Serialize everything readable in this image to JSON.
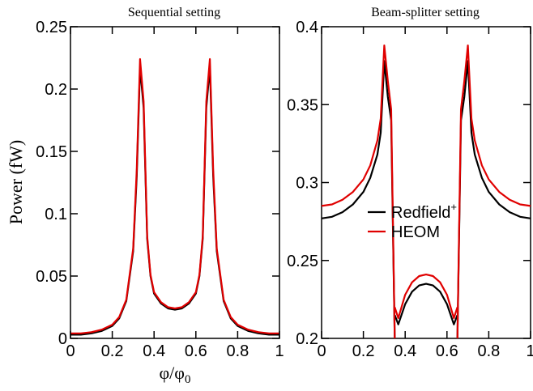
{
  "colors": {
    "redfield": "#000000",
    "heom": "#e00000"
  },
  "chart_data": [
    {
      "type": "line",
      "title": "Sequential setting",
      "xlabel": "φ/φ0",
      "ylabel": "Power (fW)",
      "xlim": [
        0,
        1
      ],
      "ylim": [
        0,
        0.25
      ],
      "xticks": [
        "0",
        "0.2",
        "0.4",
        "0.6",
        "0.8",
        "1"
      ],
      "yticks": [
        "0",
        "0.05",
        "0.1",
        "0.15",
        "0.2",
        "0.25"
      ],
      "grid": false,
      "series": [
        {
          "key": "redfield",
          "x": [
            0,
            0.05,
            0.1,
            0.15,
            0.2,
            0.233,
            0.267,
            0.3,
            0.317,
            0.333,
            0.35,
            0.367,
            0.383,
            0.4,
            0.433,
            0.467,
            0.5,
            0.533,
            0.567,
            0.6,
            0.617,
            0.633,
            0.65,
            0.667,
            0.683,
            0.7,
            0.733,
            0.767,
            0.8,
            0.85,
            0.9,
            0.95,
            1.0
          ],
          "values": [
            0.003,
            0.003,
            0.004,
            0.006,
            0.01,
            0.016,
            0.03,
            0.07,
            0.13,
            0.218,
            0.185,
            0.08,
            0.05,
            0.036,
            0.028,
            0.024,
            0.023,
            0.024,
            0.028,
            0.036,
            0.05,
            0.08,
            0.185,
            0.218,
            0.13,
            0.07,
            0.03,
            0.016,
            0.01,
            0.006,
            0.004,
            0.003,
            0.003
          ]
        },
        {
          "key": "heom",
          "x": [
            0,
            0.05,
            0.1,
            0.15,
            0.2,
            0.233,
            0.267,
            0.3,
            0.317,
            0.333,
            0.35,
            0.367,
            0.383,
            0.4,
            0.433,
            0.467,
            0.5,
            0.533,
            0.567,
            0.6,
            0.617,
            0.633,
            0.65,
            0.667,
            0.683,
            0.7,
            0.733,
            0.767,
            0.8,
            0.85,
            0.9,
            0.95,
            1.0
          ],
          "values": [
            0.004,
            0.004,
            0.005,
            0.007,
            0.011,
            0.017,
            0.031,
            0.072,
            0.135,
            0.224,
            0.19,
            0.082,
            0.051,
            0.037,
            0.029,
            0.025,
            0.024,
            0.025,
            0.029,
            0.037,
            0.051,
            0.082,
            0.19,
            0.224,
            0.135,
            0.072,
            0.031,
            0.017,
            0.011,
            0.007,
            0.005,
            0.004,
            0.004
          ]
        }
      ]
    },
    {
      "type": "line",
      "title": "Beam-splitter setting",
      "xlabel": "",
      "ylabel": "",
      "xlim": [
        0,
        1
      ],
      "ylim": [
        0.2,
        0.4
      ],
      "xticks": [
        "0",
        "0.2",
        "0.4",
        "0.6",
        "0.8",
        "1"
      ],
      "yticks": [
        "0.2",
        "0.25",
        "0.3",
        "0.35",
        "0.4"
      ],
      "grid": false,
      "legend": {
        "placement": "center-right",
        "entries": [
          {
            "key": "redfield",
            "label": "Redfield",
            "sup": "+"
          },
          {
            "key": "heom",
            "label": "HEOM"
          }
        ]
      },
      "series": [
        {
          "key": "redfield",
          "name": "Redfield+",
          "segments": [
            {
              "x": [
                0,
                0.05,
                0.1,
                0.15,
                0.2,
                0.233,
                0.267,
                0.283,
                0.3,
                0.317,
                0.333,
                0.35
              ],
              "values": [
                0.277,
                0.278,
                0.281,
                0.286,
                0.294,
                0.303,
                0.318,
                0.332,
                0.378,
                0.355,
                0.34,
                0.2
              ]
            },
            {
              "x": [
                0.35,
                0.367,
                0.4,
                0.433,
                0.467,
                0.5,
                0.533,
                0.567,
                0.6,
                0.633,
                0.65
              ],
              "values": [
                0.215,
                0.209,
                0.222,
                0.23,
                0.234,
                0.235,
                0.234,
                0.23,
                0.222,
                0.209,
                0.215
              ]
            },
            {
              "x": [
                0.65,
                0.667,
                0.683,
                0.7,
                0.717,
                0.733,
                0.767,
                0.8,
                0.85,
                0.9,
                0.95,
                1.0
              ],
              "values": [
                0.2,
                0.34,
                0.355,
                0.378,
                0.332,
                0.318,
                0.303,
                0.294,
                0.286,
                0.281,
                0.278,
                0.277
              ]
            }
          ]
        },
        {
          "key": "heom",
          "name": "HEOM",
          "segments": [
            {
              "x": [
                0,
                0.05,
                0.1,
                0.15,
                0.2,
                0.233,
                0.267,
                0.283,
                0.3,
                0.317,
                0.333,
                0.35
              ],
              "values": [
                0.285,
                0.286,
                0.289,
                0.294,
                0.302,
                0.311,
                0.327,
                0.341,
                0.388,
                0.365,
                0.347,
                0.2
              ]
            },
            {
              "x": [
                0.35,
                0.367,
                0.4,
                0.433,
                0.467,
                0.5,
                0.533,
                0.567,
                0.6,
                0.633,
                0.65
              ],
              "values": [
                0.22,
                0.213,
                0.228,
                0.236,
                0.24,
                0.241,
                0.24,
                0.236,
                0.228,
                0.213,
                0.22
              ]
            },
            {
              "x": [
                0.65,
                0.667,
                0.683,
                0.7,
                0.717,
                0.733,
                0.767,
                0.8,
                0.85,
                0.9,
                0.95,
                1.0
              ],
              "values": [
                0.2,
                0.347,
                0.365,
                0.388,
                0.341,
                0.327,
                0.311,
                0.302,
                0.294,
                0.289,
                0.286,
                0.285
              ]
            }
          ]
        }
      ]
    }
  ]
}
